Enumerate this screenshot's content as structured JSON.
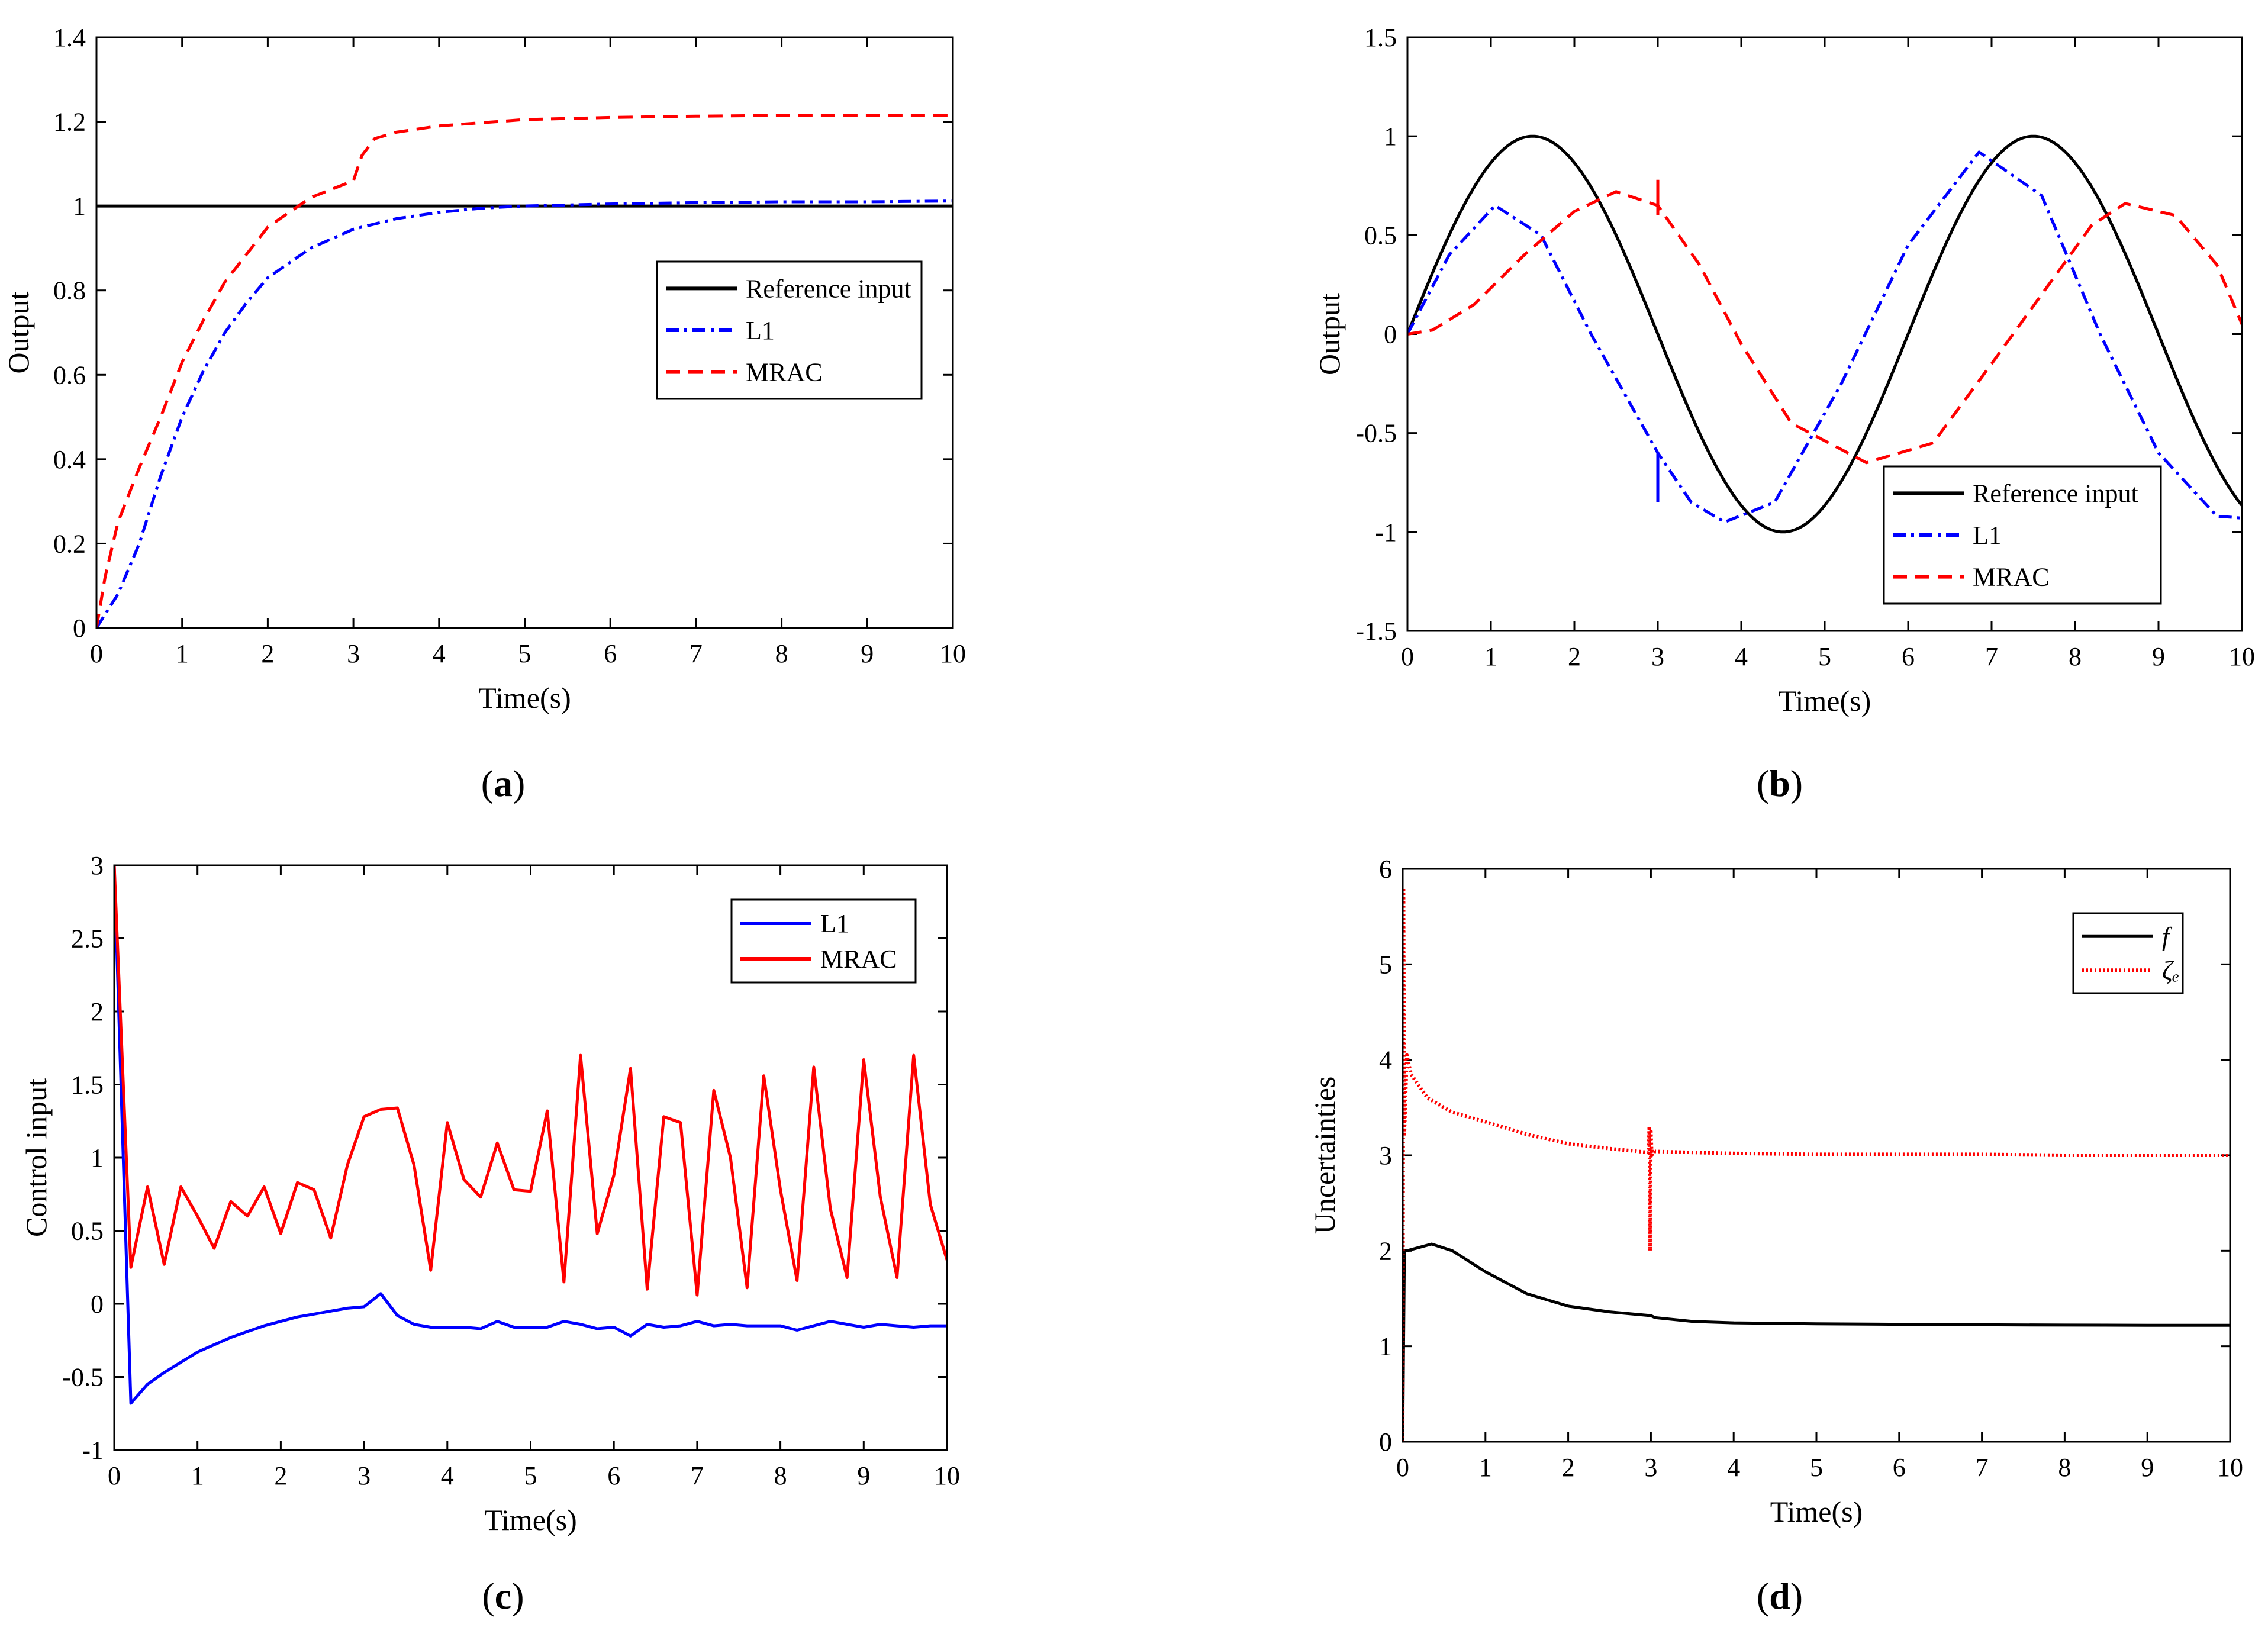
{
  "figure": {
    "captions": [
      "(a)",
      "(b)",
      "(c)",
      "(d)"
    ]
  },
  "chart_data": [
    {
      "id": "a",
      "type": "line",
      "title": "",
      "xlabel": "Time(s)",
      "ylabel": "Output",
      "xlim": [
        0,
        10
      ],
      "ylim": [
        0,
        1.4
      ],
      "xticks": [
        0,
        1,
        2,
        3,
        4,
        5,
        6,
        7,
        8,
        9,
        10
      ],
      "yticks": [
        0,
        0.2,
        0.4,
        0.6,
        0.8,
        1,
        1.2,
        1.4
      ],
      "ytick_labels": [
        "0",
        "0.2",
        "0.4",
        "0.6",
        "0.8",
        "1",
        "1.2",
        "1.4"
      ],
      "legend_position": "center-right",
      "legend": [
        "Reference input",
        "L1",
        "MRAC"
      ],
      "series": [
        {
          "name": "Reference input",
          "color": "#000000",
          "style": "solid",
          "x": [
            0,
            10
          ],
          "y": [
            1,
            1
          ]
        },
        {
          "name": "L1",
          "color": "#0000ff",
          "style": "dashdot",
          "x": [
            0,
            0.25,
            0.5,
            0.75,
            1,
            1.25,
            1.5,
            1.75,
            2,
            2.5,
            3,
            3.5,
            4,
            4.5,
            5,
            6,
            7,
            8,
            9,
            10
          ],
          "y": [
            0,
            0.08,
            0.2,
            0.36,
            0.5,
            0.61,
            0.7,
            0.77,
            0.83,
            0.9,
            0.945,
            0.97,
            0.985,
            0.995,
            1.0,
            1.005,
            1.008,
            1.01,
            1.01,
            1.012
          ]
        },
        {
          "name": "MRAC",
          "color": "#ff0000",
          "style": "dashed",
          "x": [
            0,
            0.1,
            0.25,
            0.5,
            0.75,
            1,
            1.25,
            1.5,
            2,
            2.5,
            2.75,
            3,
            3.1,
            3.25,
            3.5,
            4,
            5,
            6,
            7,
            8,
            9,
            10
          ],
          "y": [
            0,
            0.12,
            0.25,
            0.38,
            0.5,
            0.63,
            0.73,
            0.82,
            0.95,
            1.02,
            1.04,
            1.06,
            1.12,
            1.16,
            1.175,
            1.19,
            1.205,
            1.21,
            1.213,
            1.215,
            1.215,
            1.215
          ]
        }
      ]
    },
    {
      "id": "b",
      "type": "line",
      "title": "",
      "xlabel": "Time(s)",
      "ylabel": "Output",
      "xlim": [
        0,
        10
      ],
      "ylim": [
        -1.5,
        1.5
      ],
      "xticks": [
        0,
        1,
        2,
        3,
        4,
        5,
        6,
        7,
        8,
        9,
        10
      ],
      "yticks": [
        -1.5,
        -1,
        -0.5,
        0,
        0.5,
        1,
        1.5
      ],
      "ytick_labels": [
        "-1.5",
        "-1",
        "-0.5",
        "0",
        "0.5",
        "1",
        "1.5"
      ],
      "legend_position": "bottom-right",
      "legend": [
        "Reference input",
        "L1",
        "MRAC"
      ],
      "series": [
        {
          "name": "Reference input",
          "color": "#000000",
          "style": "solid",
          "formula": "sin(2*pi*t/6)"
        },
        {
          "name": "L1",
          "color": "#0000ff",
          "style": "dashdot",
          "x": [
            0,
            0.5,
            1.05,
            1.6,
            2.2,
            2.8,
            3.0,
            3.4,
            3.8,
            4.4,
            5.2,
            6.0,
            6.85,
            7.6,
            8.3,
            9.0,
            9.7,
            10
          ],
          "y": [
            0,
            0.4,
            0.65,
            0.5,
            0.0,
            -0.45,
            -0.6,
            -0.85,
            -0.95,
            -0.85,
            -0.25,
            0.45,
            0.92,
            0.7,
            0.0,
            -0.6,
            -0.92,
            -0.93
          ]
        },
        {
          "name": "MRAC",
          "color": "#ff0000",
          "style": "dashed",
          "x": [
            0,
            0.3,
            0.8,
            1.4,
            2.0,
            2.5,
            3.0,
            3.5,
            4.0,
            4.6,
            5.5,
            6.3,
            7.0,
            7.6,
            8.2,
            8.6,
            9.2,
            9.7,
            10
          ],
          "y": [
            0,
            0.02,
            0.15,
            0.4,
            0.62,
            0.72,
            0.65,
            0.35,
            -0.05,
            -0.45,
            -0.65,
            -0.55,
            -0.15,
            0.2,
            0.55,
            0.66,
            0.6,
            0.35,
            0.05
          ]
        }
      ],
      "spikes": [
        {
          "name": "L1",
          "color": "#0000ff",
          "x": 3,
          "y_from": -0.85,
          "y_to": -0.6
        },
        {
          "name": "MRAC",
          "color": "#ff0000",
          "x": 3,
          "y_from": 0.6,
          "y_to": 0.78
        }
      ]
    },
    {
      "id": "c",
      "type": "line",
      "title": "",
      "xlabel": "Time(s)",
      "ylabel": "Control input",
      "xlim": [
        0,
        10
      ],
      "ylim": [
        -1,
        3
      ],
      "xticks": [
        0,
        1,
        2,
        3,
        4,
        5,
        6,
        7,
        8,
        9,
        10
      ],
      "yticks": [
        -1,
        -0.5,
        0,
        0.5,
        1,
        1.5,
        2,
        2.5,
        3
      ],
      "ytick_labels": [
        "-1",
        "-0.5",
        "0",
        "0.5",
        "1",
        "1.5",
        "2",
        "2.5",
        "3"
      ],
      "legend_position": "top-right",
      "legend": [
        "L1",
        "MRAC"
      ],
      "series": [
        {
          "name": "L1",
          "color": "#0000ff",
          "style": "solid",
          "x": [
            0,
            0.2,
            0.4,
            0.6,
            0.8,
            1.0,
            1.2,
            1.4,
            1.6,
            1.8,
            2.0,
            2.2,
            2.4,
            2.6,
            2.8,
            3.0,
            3.2,
            3.4,
            3.6,
            3.8,
            4.0,
            4.2,
            4.4,
            4.6,
            4.8,
            5.0,
            5.2,
            5.4,
            5.6,
            5.8,
            6.0,
            6.2,
            6.4,
            6.6,
            6.8,
            7.0,
            7.2,
            7.4,
            7.6,
            7.8,
            8.0,
            8.2,
            8.4,
            8.6,
            8.8,
            9.0,
            9.2,
            9.4,
            9.6,
            9.8,
            10.0
          ],
          "y": [
            3,
            -0.68,
            -0.55,
            -0.47,
            -0.4,
            -0.33,
            -0.28,
            -0.23,
            -0.19,
            -0.15,
            -0.12,
            -0.09,
            -0.07,
            -0.05,
            -0.03,
            -0.02,
            0.07,
            -0.08,
            -0.14,
            -0.16,
            -0.16,
            -0.16,
            -0.17,
            -0.12,
            -0.16,
            -0.16,
            -0.16,
            -0.12,
            -0.14,
            -0.17,
            -0.16,
            -0.22,
            -0.14,
            -0.16,
            -0.15,
            -0.12,
            -0.15,
            -0.14,
            -0.15,
            -0.15,
            -0.15,
            -0.18,
            -0.15,
            -0.12,
            -0.14,
            -0.16,
            -0.14,
            -0.15,
            -0.16,
            -0.15,
            -0.15
          ]
        },
        {
          "name": "MRAC",
          "color": "#ff0000",
          "style": "solid",
          "x": [
            0,
            0.2,
            0.4,
            0.6,
            0.8,
            1.0,
            1.2,
            1.4,
            1.6,
            1.8,
            2.0,
            2.2,
            2.4,
            2.6,
            2.8,
            3.0,
            3.2,
            3.4,
            3.6,
            3.8,
            4.0,
            4.2,
            4.4,
            4.6,
            4.8,
            5.0,
            5.2,
            5.4,
            5.6,
            5.8,
            6.0,
            6.2,
            6.4,
            6.6,
            6.8,
            7.0,
            7.2,
            7.4,
            7.6,
            7.8,
            8.0,
            8.2,
            8.4,
            8.6,
            8.8,
            9.0,
            9.2,
            9.4,
            9.6,
            9.8,
            10.0
          ],
          "y": [
            3,
            0.25,
            0.8,
            0.27,
            0.8,
            0.6,
            0.38,
            0.7,
            0.6,
            0.8,
            0.48,
            0.83,
            0.78,
            0.45,
            0.95,
            1.28,
            1.33,
            1.34,
            0.95,
            0.23,
            1.24,
            0.85,
            0.73,
            1.1,
            0.78,
            0.77,
            1.32,
            0.15,
            1.7,
            0.48,
            0.88,
            1.61,
            0.1,
            1.28,
            1.24,
            0.06,
            1.46,
            1.0,
            0.11,
            1.56,
            0.78,
            0.16,
            1.62,
            0.65,
            0.18,
            1.67,
            0.73,
            0.18,
            1.7,
            0.68,
            0.3
          ]
        }
      ]
    },
    {
      "id": "d",
      "type": "line",
      "title": "",
      "xlabel": "Time(s)",
      "ylabel": "Uncertainties",
      "xlim": [
        0,
        10
      ],
      "ylim": [
        0,
        6
      ],
      "xticks": [
        0,
        1,
        2,
        3,
        4,
        5,
        6,
        7,
        8,
        9,
        10
      ],
      "yticks": [
        0,
        1,
        2,
        3,
        4,
        5,
        6
      ],
      "ytick_labels": [
        "0",
        "1",
        "2",
        "3",
        "4",
        "5",
        "6"
      ],
      "legend_position": "top-right",
      "legend": [
        "f",
        "ζₑ"
      ],
      "series": [
        {
          "name": "f",
          "color": "#000000",
          "style": "solid",
          "x": [
            0,
            0.02,
            0.05,
            0.35,
            0.6,
            1.0,
            1.5,
            2.0,
            2.5,
            3.0,
            3.05,
            3.5,
            4.0,
            5.0,
            6.0,
            7.0,
            8.0,
            9.0,
            10.0
          ],
          "y": [
            0,
            2.0,
            2.0,
            2.07,
            2.0,
            1.78,
            1.55,
            1.42,
            1.36,
            1.32,
            1.3,
            1.26,
            1.245,
            1.235,
            1.23,
            1.225,
            1.222,
            1.22,
            1.22
          ]
        },
        {
          "name": "ζₑ",
          "color": "#ff0000",
          "style": "dotted",
          "x": [
            0,
            0.01,
            0.02,
            0.05,
            0.1,
            0.3,
            0.6,
            1.0,
            1.5,
            2.0,
            2.5,
            2.97,
            2.98,
            2.99,
            3.0,
            3.01,
            3.02,
            3.05,
            3.5,
            4.0,
            5.0,
            6.0,
            7.0,
            8.0,
            9.0,
            10.0
          ],
          "y": [
            0,
            5.8,
            3.2,
            4.05,
            3.85,
            3.6,
            3.45,
            3.35,
            3.22,
            3.12,
            3.07,
            3.03,
            3.3,
            2.0,
            3.25,
            3.0,
            3.06,
            3.04,
            3.03,
            3.02,
            3.01,
            3.01,
            3.01,
            3.0,
            3.0,
            3.0
          ]
        }
      ]
    }
  ]
}
